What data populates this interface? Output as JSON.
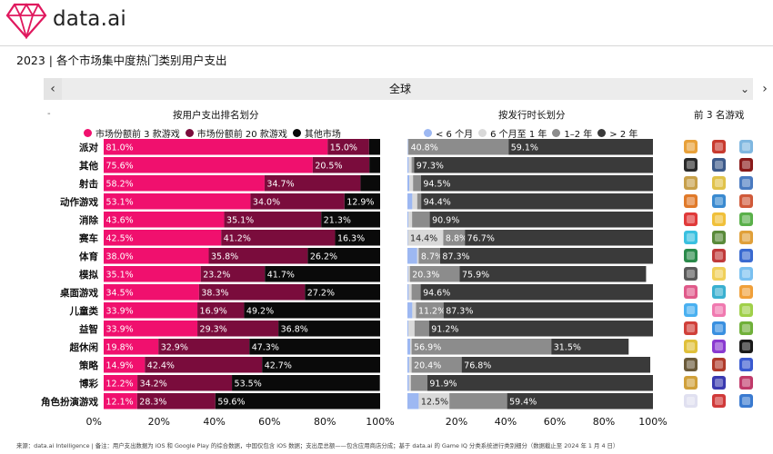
{
  "header": {
    "logo_text": "data.ai"
  },
  "page_title": "2023 | 各个市场集中度热门类别用户支出",
  "nav": {
    "prev": "‹",
    "next": "›",
    "region": "全球",
    "caret": "⌄"
  },
  "dash": "-",
  "sections": {
    "left_title": "按用户支出排名划分",
    "right_title": "按发行时长划分",
    "games_title": "前 3 名游戏"
  },
  "legend_left": [
    {
      "label": "市场份额前 3 款游戏",
      "color": "#f0106e"
    },
    {
      "label": "市场份额前 20 款游戏",
      "color": "#7a0c3c"
    },
    {
      "label": "其他市场",
      "color": "#0a0a0a"
    }
  ],
  "legend_right": [
    {
      "label": "< 6 个月",
      "color": "#9db8f2"
    },
    {
      "label": "6 个月至 1 年",
      "color": "#d9d9d9"
    },
    {
      "label": "1–2 年",
      "color": "#8c8c8c"
    },
    {
      "label": "> 2 年",
      "color": "#3a3a3a"
    }
  ],
  "chart_data": [
    {
      "type": "bar",
      "orientation": "horizontal",
      "stacked": true,
      "title": "按用户支出排名划分",
      "categories": [
        "派对",
        "其他",
        "射击",
        "动作游戏",
        "消除",
        "赛车",
        "体育",
        "模拟",
        "桌面游戏",
        "儿童类",
        "益智",
        "超休闲",
        "策略",
        "博彩",
        "角色扮演游戏"
      ],
      "series": [
        {
          "name": "市场份额前 3 款游戏",
          "color": "#f0106e",
          "values": [
            81.0,
            75.6,
            58.2,
            53.1,
            43.6,
            42.5,
            38.0,
            35.1,
            34.5,
            33.9,
            33.9,
            19.8,
            14.9,
            12.2,
            12.1
          ],
          "labels": [
            "81.0%",
            "75.6%",
            "58.2%",
            "53.1%",
            "43.6%",
            "42.5%",
            "38.0%",
            "35.1%",
            "34.5%",
            "33.9%",
            "33.9%",
            "19.8%",
            "14.9%",
            "12.2%",
            "12.1%"
          ]
        },
        {
          "name": "市场份额前 20 款游戏",
          "color": "#7a0c3c",
          "values": [
            15.0,
            20.5,
            34.7,
            34.0,
            35.1,
            41.2,
            35.8,
            23.2,
            38.3,
            16.9,
            29.3,
            32.9,
            42.4,
            34.2,
            28.3
          ],
          "labels": [
            "15.0%",
            "20.5%",
            "34.7%",
            "34.0%",
            "35.1%",
            "41.2%",
            "35.8%",
            "23.2%",
            "38.3%",
            "16.9%",
            "29.3%",
            "32.9%",
            "42.4%",
            "34.2%",
            "28.3%"
          ]
        },
        {
          "name": "其他市场",
          "color": "#0a0a0a",
          "values": [
            4.0,
            3.9,
            7.1,
            12.9,
            21.3,
            16.3,
            26.2,
            41.7,
            27.2,
            49.2,
            36.8,
            47.3,
            42.7,
            53.5,
            59.6
          ],
          "labels": [
            "",
            "",
            "",
            "12.9%",
            "21.3%",
            "16.3%",
            "26.2%",
            "41.7%",
            "27.2%",
            "49.2%",
            "36.8%",
            "47.3%",
            "42.7%",
            "53.5%",
            "59.6%"
          ]
        }
      ],
      "xlim": [
        0,
        100
      ],
      "xticks": [
        "0%",
        "20%",
        "40%",
        "60%",
        "80%",
        "100%"
      ]
    },
    {
      "type": "bar",
      "orientation": "horizontal",
      "stacked": true,
      "title": "按发行时长划分",
      "categories": [
        "派对",
        "其他",
        "射击",
        "动作游戏",
        "消除",
        "赛车",
        "体育",
        "模拟",
        "桌面游戏",
        "儿童类",
        "益智",
        "超休闲",
        "策略",
        "博彩",
        "角色扮演游戏"
      ],
      "series": [
        {
          "name": "< 6 个月",
          "color": "#9db8f2",
          "values": [
            0.2,
            0.5,
            0.8,
            2.0,
            0.4,
            0.2,
            4.0,
            0.3,
            0.5,
            2.0,
            0.4,
            1.2,
            0.7,
            0.6,
            4.6
          ],
          "labels": [
            "",
            "",
            "",
            "",
            "",
            "",
            "",
            "",
            "",
            "",
            "",
            "",
            "",
            "",
            ""
          ]
        },
        {
          "name": "6 个月至 1 年",
          "color": "#d9d9d9",
          "values": [
            0.2,
            1.2,
            1.5,
            2.0,
            1.5,
            14.4,
            0.6,
            0.7,
            1.2,
            1.5,
            2.5,
            0.5,
            1.0,
            0.8,
            12.5
          ],
          "labels": [
            "",
            "",
            "",
            "",
            "",
            "14.4%",
            "",
            "",
            "",
            "",
            "",
            "",
            "",
            "",
            "12.5%"
          ]
        },
        {
          "name": "1–2 年",
          "color": "#8c8c8c",
          "values": [
            40.8,
            1.0,
            3.2,
            1.6,
            7.2,
            8.8,
            8.7,
            20.3,
            3.7,
            11.2,
            5.9,
            56.9,
            20.4,
            6.7,
            23.5
          ],
          "labels": [
            "40.8%",
            "",
            "",
            "",
            "",
            "8.8%",
            "8.7%",
            "20.3%",
            "",
            "11.2%",
            "",
            "56.9%",
            "20.4%",
            "",
            ""
          ]
        },
        {
          "name": "> 2 年",
          "color": "#3a3a3a",
          "values": [
            59.1,
            97.3,
            94.5,
            94.4,
            90.9,
            76.7,
            87.3,
            75.9,
            94.6,
            87.3,
            91.2,
            31.5,
            76.8,
            91.9,
            59.4
          ],
          "labels": [
            "59.1%",
            "97.3%",
            "94.5%",
            "94.4%",
            "90.9%",
            "76.7%",
            "87.3%",
            "75.9%",
            "94.6%",
            "87.3%",
            "91.2%",
            "31.5%",
            "76.8%",
            "91.9%",
            "59.4%"
          ]
        }
      ],
      "xlim": [
        0,
        100
      ],
      "xticks": [
        "20%",
        "40%",
        "60%",
        "80%",
        "100%"
      ]
    }
  ],
  "games_icons": [
    [
      "#e8a13a",
      "#c83a2e",
      "#7fb7e0"
    ],
    [
      "#2a2a2a",
      "#3d5a8a",
      "#8a1a1a"
    ],
    [
      "#c7a04a",
      "#e0c24a",
      "#4a7ac0"
    ],
    [
      "#e07a2a",
      "#3a8ad0",
      "#d05a3a"
    ],
    [
      "#e03a3a",
      "#f0c03a",
      "#5ab04a"
    ],
    [
      "#3ac0e0",
      "#5a8a3a",
      "#e0a03a"
    ],
    [
      "#2a8a4a",
      "#c03a3a",
      "#3a6ad0"
    ],
    [
      "#5a5a5a",
      "#f0d05a",
      "#7ac0f0"
    ],
    [
      "#e05a8a",
      "#3ab0d0",
      "#f0a03a"
    ],
    [
      "#4ab0f0",
      "#f07ab0",
      "#a0d04a"
    ],
    [
      "#d0403a",
      "#3a90e0",
      "#70b03a"
    ],
    [
      "#e0c03a",
      "#8a3ad0",
      "#1a1a1a"
    ],
    [
      "#6a5a3a",
      "#b03a2a",
      "#3a5ad0"
    ],
    [
      "#d0a03a",
      "#3a3ab0",
      "#c03a6a"
    ],
    [
      "#e0e0f0",
      "#d03a3a",
      "#3a7ad0"
    ]
  ],
  "footnote": "来源：data.ai Intelligence | 备注：用户支出数据为 iOS 和 Google Play 的综合数据，中国仅包含 iOS 数据；支出是总额——包含应用商店分成；基于 data.ai 的 Game IQ 分类系统进行类别细分（数据截止至 2024 年 1 月 4 日）"
}
